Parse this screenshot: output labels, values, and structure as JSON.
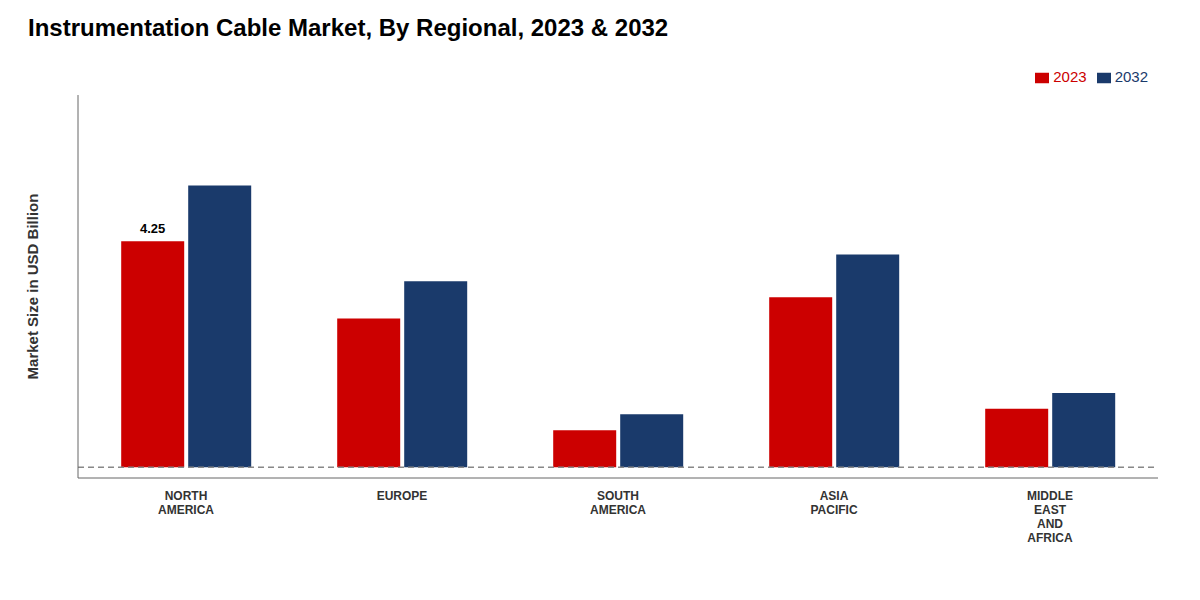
{
  "chart_data": {
    "type": "bar",
    "title": "Instrumentation Cable Market, By Regional, 2023 & 2032",
    "y_label": "Market Size in USD Billion",
    "categories": [
      "NORTH\nAMERICA",
      "EUROPE",
      "SOUTH\nAMERICA",
      "ASIA\nPACIFIC",
      "MIDDLE\nEAST\nAND\nAFRICA"
    ],
    "series": [
      {
        "name": "2023",
        "color": "#cc0000",
        "values": [
          4.25,
          2.8,
          0.7,
          3.2,
          1.1
        ]
      },
      {
        "name": "2032",
        "color": "#1a3a6b",
        "values": [
          5.3,
          3.5,
          1.0,
          4.0,
          1.4
        ]
      }
    ],
    "ylim": [
      -0.2,
      7.0
    ],
    "yticks": [],
    "tick_labels": "x",
    "grid": false,
    "legend": "upper right",
    "annotations": [
      {
        "text": "4.25",
        "series": "2023",
        "category": "NORTH\nAMERICA"
      }
    ],
    "reference_lines": [
      {
        "y": 0.0,
        "line_style": "dashed"
      }
    ]
  }
}
